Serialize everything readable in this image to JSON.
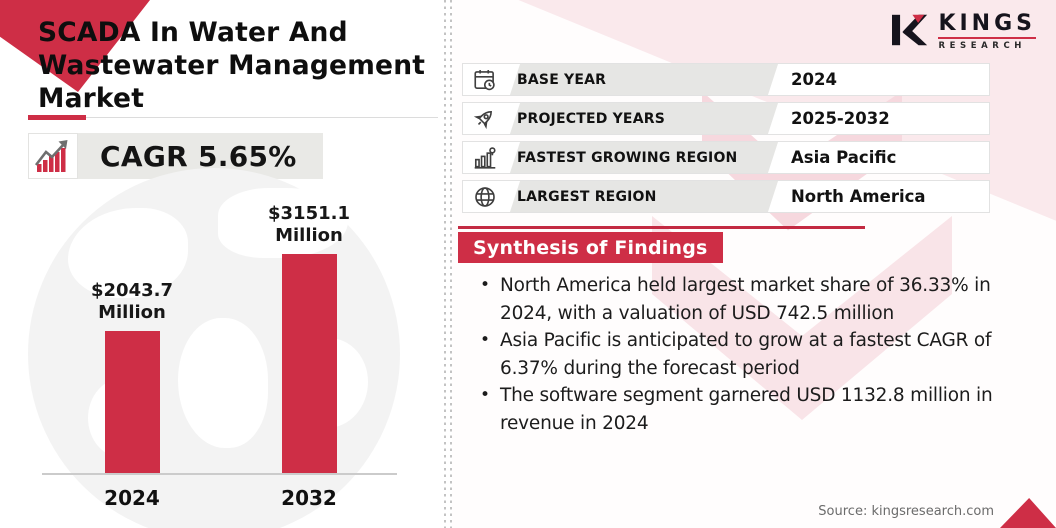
{
  "colors": {
    "accent_red": "#ce2e46",
    "label_strip_gray": "#e6e6e4",
    "panel_pink_light": "#fae9ec",
    "panel_pink_mid": "#f6d8de",
    "text_primary": "#141414",
    "text_muted": "#6b6b6b"
  },
  "left": {
    "title": "SCADA In Water And Wastewater Management Market",
    "cagr_label": "CAGR 5.65%"
  },
  "chart_data": {
    "type": "bar",
    "title": "SCADA In Water And Wastewater Management Market size",
    "categories": [
      "2024",
      "2032"
    ],
    "values": [
      2043.7,
      3151.1
    ],
    "value_labels": [
      {
        "amount": "$2043.7",
        "unit": "Million"
      },
      {
        "amount": "$3151.1",
        "unit": "Million"
      }
    ],
    "ylabel": "",
    "xlabel": "",
    "ylim": [
      0,
      3151.1
    ],
    "gridlines": false,
    "legend_position": "none",
    "bar_color": "#ce2e46",
    "cagr": "5.65%"
  },
  "right": {
    "logo": {
      "brand": "KINGS",
      "sub": "RESEARCH"
    },
    "info_rows": [
      {
        "icon": "calendar-clock-icon",
        "label": "BASE YEAR",
        "value": "2024"
      },
      {
        "icon": "rocket-icon",
        "label": "PROJECTED YEARS",
        "value": "2025-2032"
      },
      {
        "icon": "growth-region-icon",
        "label": "FASTEST GROWING REGION",
        "value": "Asia Pacific"
      },
      {
        "icon": "globe-icon",
        "label": "LARGEST REGION",
        "value": "North America"
      }
    ],
    "synthesis": {
      "heading": "Synthesis of Findings",
      "bullets": [
        "North America held largest market share of 36.33% in 2024, with a valuation of USD 742.5 million",
        "Asia Pacific is anticipated to grow at a fastest CAGR of 6.37% during the forecast period",
        "The software segment garnered USD 1132.8 million in revenue in 2024"
      ]
    },
    "source": "Source: kingsresearch.com"
  }
}
